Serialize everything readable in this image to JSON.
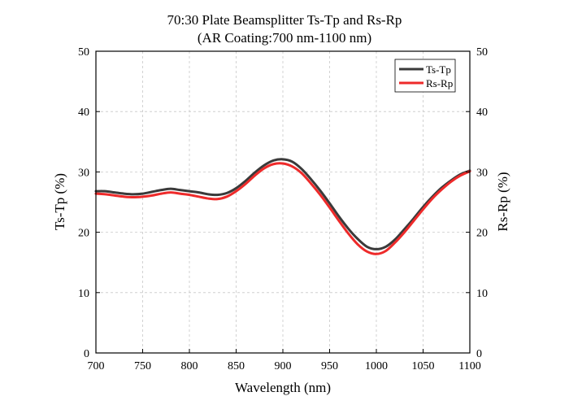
{
  "chart_data": {
    "type": "line",
    "title": "70:30 Plate Beamsplitter Ts-Tp and Rs-Rp",
    "subtitle": "(AR Coating:700 nm-1100 nm)",
    "xlabel": "Wavelength (nm)",
    "ylabel": "Ts-Tp (%)",
    "ylabel_right": "Rs-Rp (%)",
    "xlim": [
      700,
      1100
    ],
    "ylim": [
      0,
      50
    ],
    "x_ticks": [
      700,
      750,
      800,
      850,
      900,
      950,
      1000,
      1050,
      1100
    ],
    "y_ticks": [
      0,
      10,
      20,
      30,
      40,
      50
    ],
    "grid": true,
    "legend_position": "top-right",
    "series": [
      {
        "name": "Ts-Tp",
        "color": "#3a3a3a",
        "x": [
          700,
          710,
          720,
          730,
          740,
          750,
          760,
          770,
          780,
          790,
          800,
          810,
          820,
          830,
          840,
          850,
          860,
          870,
          880,
          890,
          900,
          910,
          920,
          930,
          940,
          950,
          960,
          970,
          980,
          990,
          1000,
          1010,
          1020,
          1030,
          1040,
          1050,
          1060,
          1070,
          1080,
          1090,
          1100
        ],
        "y": [
          26.8,
          26.8,
          26.6,
          26.4,
          26.3,
          26.4,
          26.7,
          27.0,
          27.2,
          27.0,
          26.8,
          26.6,
          26.3,
          26.2,
          26.5,
          27.3,
          28.5,
          29.9,
          31.1,
          31.9,
          32.1,
          31.7,
          30.5,
          28.8,
          26.9,
          24.8,
          22.6,
          20.6,
          18.9,
          17.6,
          17.2,
          17.6,
          18.8,
          20.5,
          22.3,
          24.2,
          25.9,
          27.4,
          28.6,
          29.6,
          30.2
        ]
      },
      {
        "name": "Rs-Rp",
        "color": "#ee2a2a",
        "x": [
          700,
          710,
          720,
          730,
          740,
          750,
          760,
          770,
          780,
          790,
          800,
          810,
          820,
          830,
          840,
          850,
          860,
          870,
          880,
          890,
          900,
          910,
          920,
          930,
          940,
          950,
          960,
          970,
          980,
          990,
          1000,
          1010,
          1020,
          1030,
          1040,
          1050,
          1060,
          1070,
          1080,
          1090,
          1100
        ],
        "y": [
          26.4,
          26.3,
          26.1,
          25.9,
          25.8,
          25.9,
          26.1,
          26.4,
          26.6,
          26.4,
          26.2,
          25.9,
          25.6,
          25.5,
          25.9,
          26.8,
          28.0,
          29.4,
          30.6,
          31.3,
          31.4,
          30.9,
          29.8,
          28.1,
          26.2,
          24.1,
          21.9,
          19.8,
          18.0,
          16.8,
          16.4,
          16.9,
          18.3,
          20.0,
          21.9,
          23.8,
          25.6,
          27.1,
          28.4,
          29.4,
          30.1
        ]
      }
    ]
  }
}
